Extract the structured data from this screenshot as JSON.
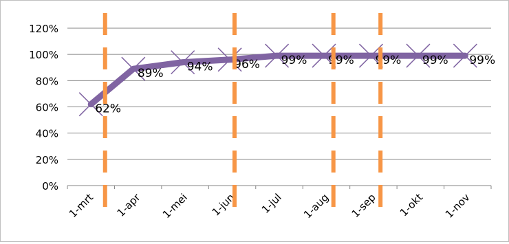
{
  "chart_data": {
    "type": "line",
    "title": "",
    "xlabel": "",
    "ylabel": "",
    "categories": [
      "1-mrt",
      "1-apr",
      "1-mei",
      "1-jun",
      "1-jul",
      "1-aug",
      "1-sep",
      "1-okt",
      "1-nov"
    ],
    "ylim": [
      0,
      1.2
    ],
    "y_ticks": [
      "0%",
      "20%",
      "40%",
      "60%",
      "80%",
      "100%",
      "120%"
    ],
    "grid": true,
    "legend": "none",
    "series": [
      {
        "name": "",
        "x": [
          0,
          0.9,
          1.95,
          2.95,
          3.95,
          4.95,
          5.95,
          6.95,
          7.95
        ],
        "values": [
          0.62,
          0.89,
          0.94,
          0.96,
          0.99,
          0.99,
          0.99,
          0.99,
          0.99
        ],
        "labels": [
          "62%",
          "89%",
          "94%",
          "96%",
          "99%",
          "99%",
          "99%",
          "99%",
          "99%"
        ],
        "color": "#8064a2",
        "marker": "x",
        "marker_color": "#8064a2"
      }
    ],
    "reference_lines": {
      "orientation": "vertical",
      "style": "dashed",
      "color": "#f79646",
      "x": [
        0.3,
        3.05,
        5.15,
        6.15
      ]
    }
  }
}
